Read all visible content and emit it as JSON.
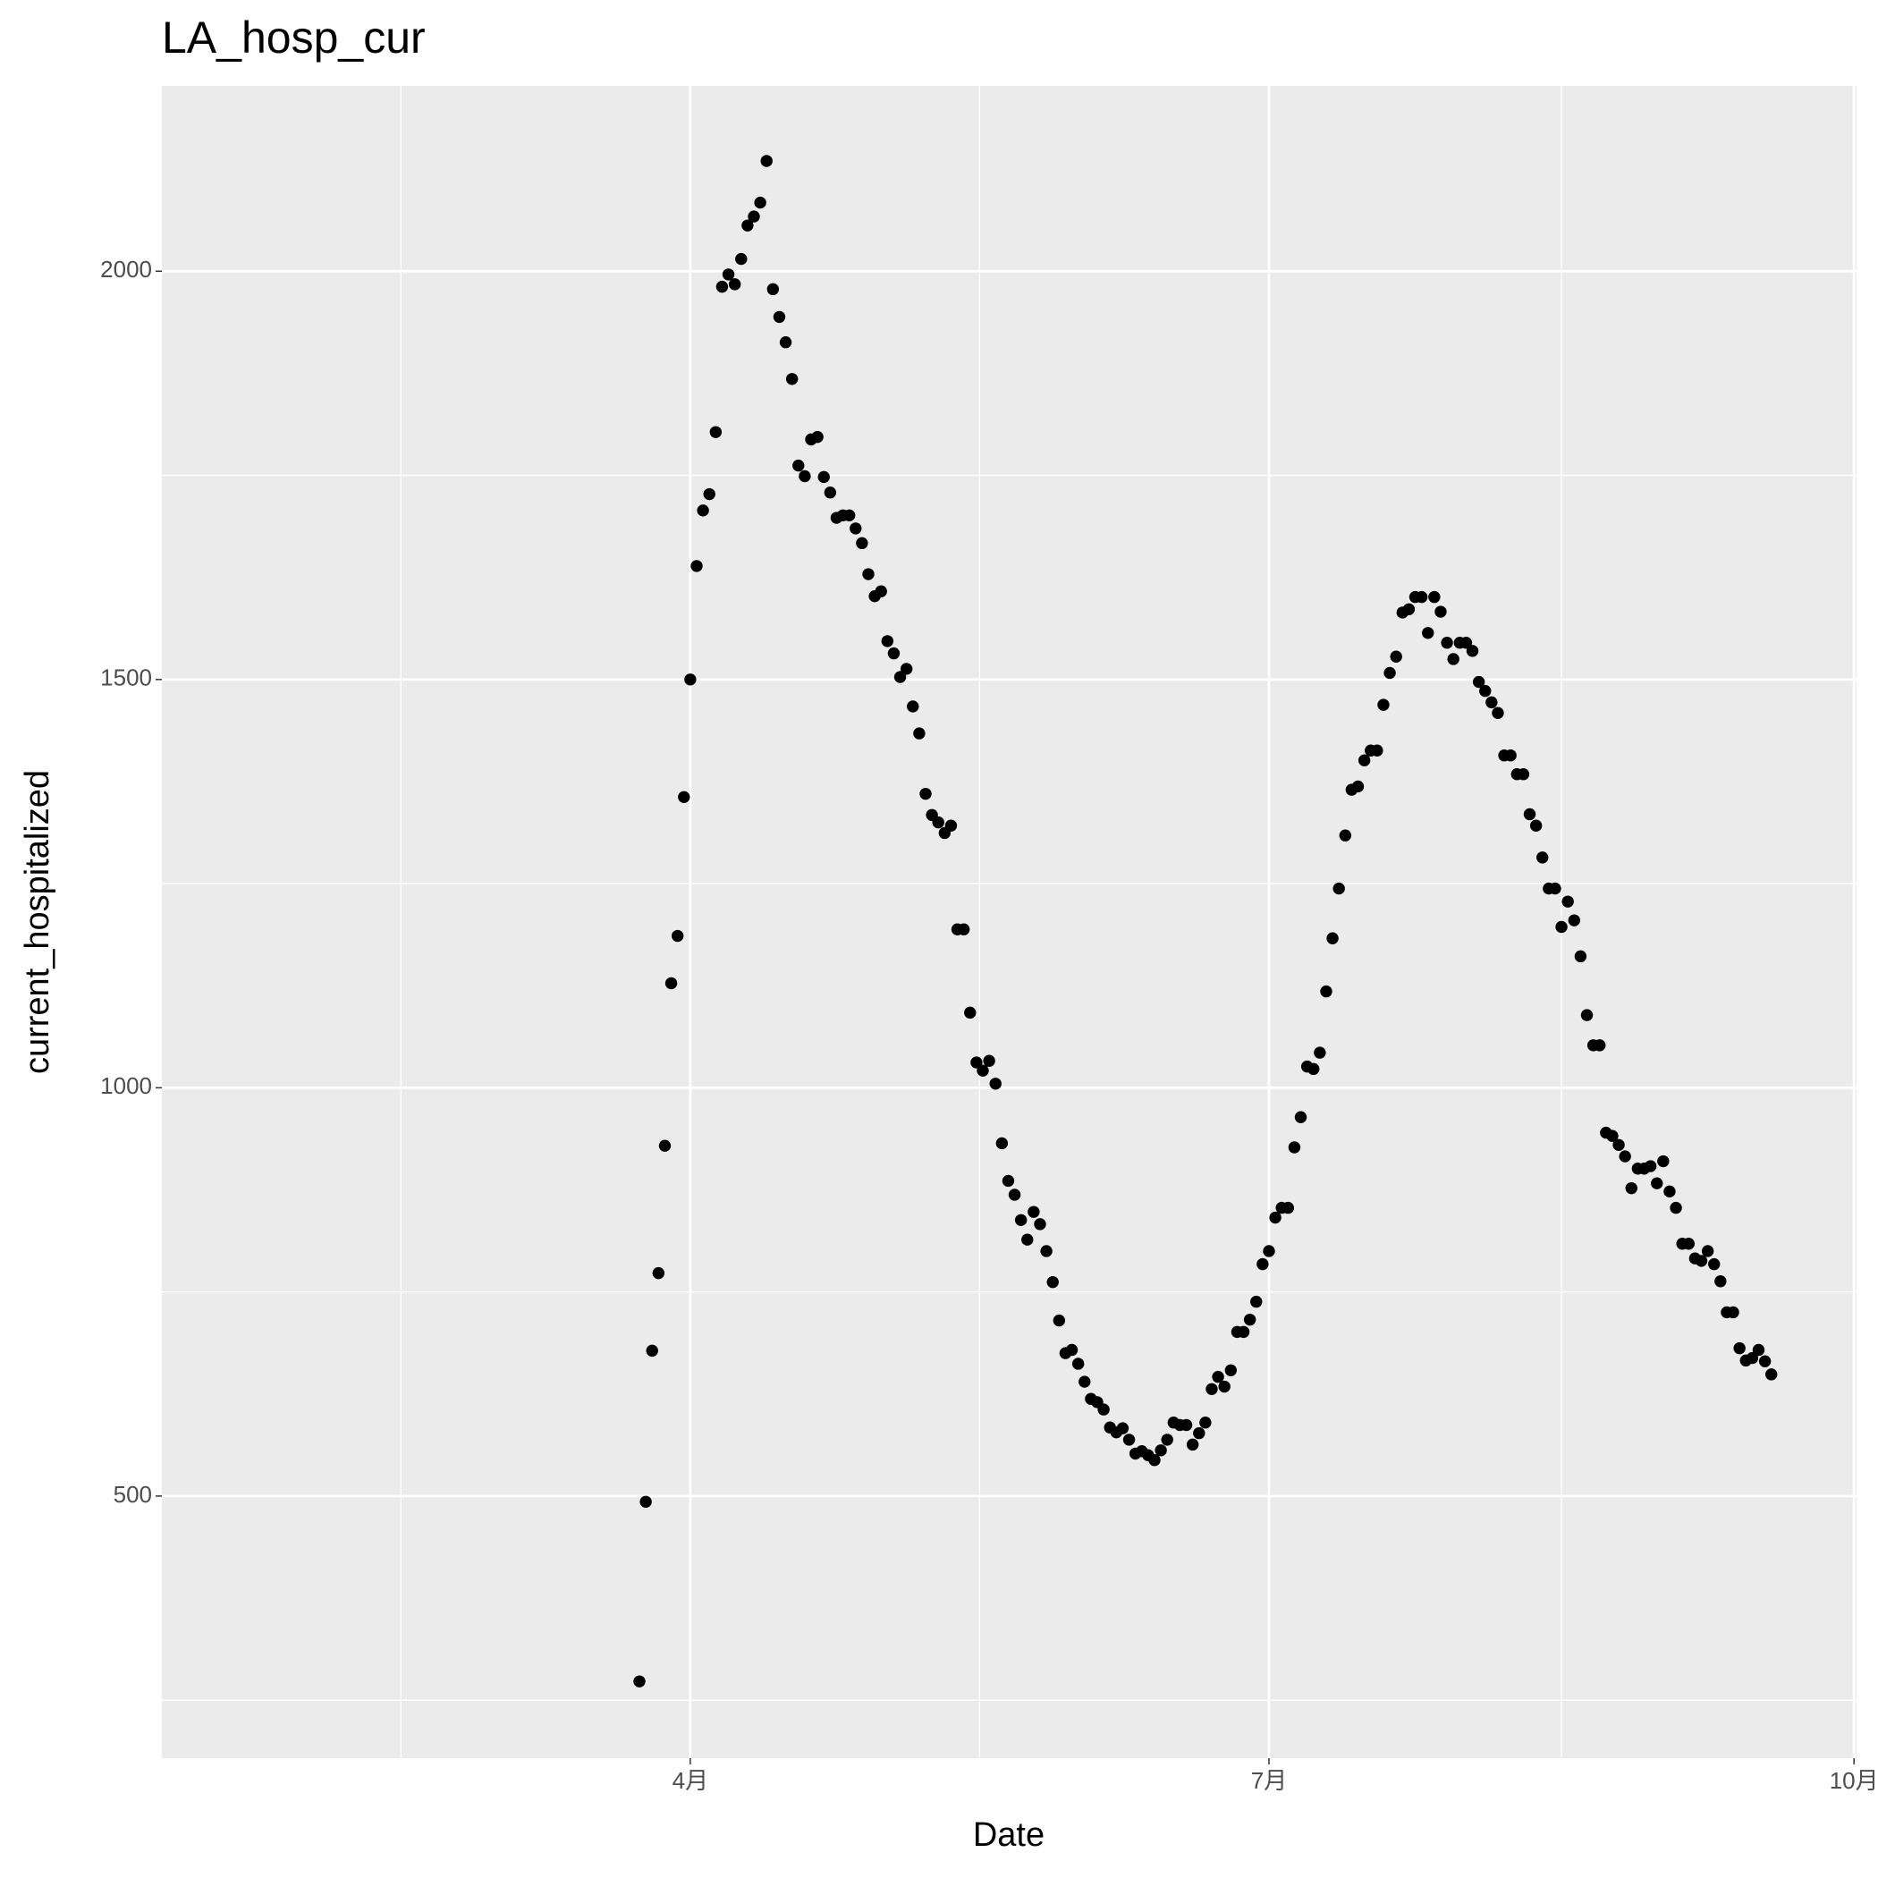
{
  "chart_data": {
    "type": "scatter",
    "title": "LA_hosp_cur",
    "x_label": "Date",
    "y_label": "current_hospitalized",
    "color": "#000000",
    "grid": true,
    "xlim": [
      8.9,
      275.4
    ],
    "ylim": [
      179,
      2227
    ],
    "xticks": [
      {
        "value": 92,
        "label": "4月"
      },
      {
        "value": 183,
        "label": "7月"
      },
      {
        "value": 275,
        "label": "10月"
      }
    ],
    "yticks": [
      500,
      1000,
      1500,
      2000
    ],
    "x": [
      84,
      85,
      86,
      87,
      88,
      89,
      90,
      91,
      92,
      93,
      94,
      95,
      96,
      97,
      98,
      99,
      100,
      101,
      102,
      103,
      104,
      105,
      106,
      107,
      108,
      109,
      110,
      111,
      112,
      113,
      114,
      115,
      116,
      117,
      118,
      119,
      120,
      121,
      122,
      123,
      124,
      125,
      126,
      127,
      128,
      129,
      130,
      131,
      132,
      133,
      134,
      135,
      136,
      137,
      138,
      139,
      140,
      141,
      142,
      143,
      144,
      145,
      146,
      147,
      148,
      149,
      150,
      151,
      152,
      153,
      154,
      155,
      156,
      157,
      158,
      159,
      160,
      161,
      162,
      163,
      164,
      165,
      166,
      167,
      168,
      169,
      170,
      171,
      172,
      173,
      174,
      175,
      176,
      177,
      178,
      179,
      180,
      181,
      182,
      183,
      184,
      185,
      186,
      187,
      188,
      189,
      190,
      191,
      192,
      193,
      194,
      195,
      196,
      197,
      198,
      199,
      200,
      201,
      202,
      203,
      204,
      205,
      206,
      207,
      208,
      209,
      210,
      211,
      212,
      213,
      214,
      215,
      216,
      217,
      218,
      219,
      220,
      221,
      222,
      223,
      224,
      225,
      226,
      227,
      228,
      229,
      230,
      231,
      232,
      233,
      234,
      235,
      236,
      237,
      238,
      239,
      240,
      241,
      242,
      243,
      244,
      245,
      246,
      247,
      248,
      249,
      250,
      251,
      252,
      253,
      254,
      255,
      256,
      257,
      258,
      259,
      260,
      261,
      262
    ],
    "values": [
      273,
      493,
      678,
      773,
      929,
      1128,
      1186,
      1356,
      1500,
      1639,
      1707,
      1727,
      1803,
      1981,
      1996,
      1984,
      2015,
      2056,
      2067,
      2084,
      2135,
      1978,
      1944,
      1913,
      1868,
      1762,
      1749,
      1794,
      1797,
      1748,
      1729,
      1698,
      1701,
      1701,
      1685,
      1667,
      1629,
      1602,
      1608,
      1547,
      1532,
      1503,
      1513,
      1467,
      1434,
      1360,
      1334,
      1325,
      1312,
      1321,
      1194,
      1194,
      1092,
      1031,
      1021,
      1033,
      1005,
      932,
      886,
      869,
      838,
      814,
      848,
      833,
      800,
      762,
      715,
      675,
      679,
      662,
      640,
      619,
      615,
      606,
      584,
      578,
      583,
      569,
      552,
      555,
      550,
      544,
      556,
      569,
      590,
      587,
      587,
      563,
      577,
      590,
      631,
      646,
      634,
      654,
      701,
      701,
      716,
      738,
      784,
      800,
      841,
      853,
      853,
      927,
      964,
      1026,
      1023,
      1043,
      1118,
      1183,
      1244,
      1309,
      1365,
      1369,
      1401,
      1413,
      1413,
      1469,
      1508,
      1528,
      1582,
      1586,
      1601,
      1601,
      1557,
      1601,
      1583,
      1545,
      1525,
      1545,
      1545,
      1535,
      1497,
      1486,
      1472,
      1459,
      1407,
      1407,
      1384,
      1384,
      1335,
      1321,
      1282,
      1244,
      1244,
      1197,
      1228,
      1205,
      1161,
      1089,
      1052,
      1052,
      945,
      941,
      930,
      916,
      877,
      901,
      901,
      904,
      883,
      910,
      873,
      853,
      809,
      809,
      791,
      788,
      800,
      784,
      763,
      725,
      725,
      681,
      666,
      669,
      679,
      665,
      649
    ]
  }
}
